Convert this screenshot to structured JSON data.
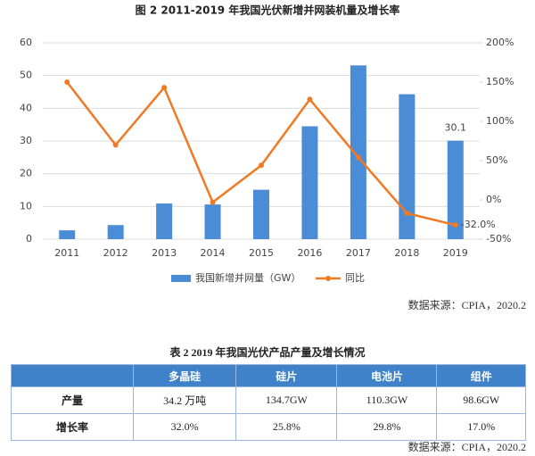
{
  "chart_data": {
    "type": "bar_line",
    "title": "图 2 2011-2019 年我国光伏新增并网装机量及增长率",
    "categories": [
      "2011",
      "2012",
      "2013",
      "2014",
      "2015",
      "2016",
      "2017",
      "2018",
      "2019"
    ],
    "series": [
      {
        "name": "我国新增并网量（GW）",
        "type": "bar",
        "color": "#4a8cd6",
        "values": [
          2.7,
          4.3,
          10.9,
          10.6,
          15.1,
          34.5,
          53.1,
          44.3,
          30.1
        ],
        "value_labels": [
          null,
          null,
          null,
          null,
          null,
          null,
          null,
          null,
          "30.1"
        ]
      },
      {
        "name": "同比",
        "type": "line",
        "axis": "y2",
        "color": "#f07a24",
        "values": [
          150,
          70,
          143,
          -3,
          44,
          128,
          54,
          -17,
          -32
        ],
        "value_labels": [
          null,
          null,
          null,
          null,
          null,
          null,
          null,
          null,
          "-32.0%"
        ]
      }
    ],
    "ylim": [
      0,
      60
    ],
    "yticks": [
      0,
      10,
      20,
      30,
      40,
      50,
      60
    ],
    "y2lim": [
      -50,
      200
    ],
    "y2ticks": [
      {
        "value": -50,
        "label": "-50%"
      },
      {
        "value": 0,
        "label": "0%"
      },
      {
        "value": 50,
        "label": "50%"
      },
      {
        "value": 100,
        "label": "100%"
      },
      {
        "value": 150,
        "label": "150%"
      },
      {
        "value": 200,
        "label": "200%"
      }
    ],
    "grid": true
  },
  "source": "数据来源：CPIA，2020.2",
  "table": {
    "title": "表 2 2019 年我国光伏产品产量及增长情况",
    "header": [
      "多晶硅",
      "硅片",
      "电池片",
      "组件"
    ],
    "rows": [
      [
        "产量",
        "34.2 万吨",
        "134.7GW",
        "110.3GW",
        "98.6GW"
      ],
      [
        "增长率",
        "32.0%",
        "25.8%",
        "29.8%",
        "17.0%"
      ]
    ]
  },
  "footer_source": "数据来源：CPIA，2020.2"
}
